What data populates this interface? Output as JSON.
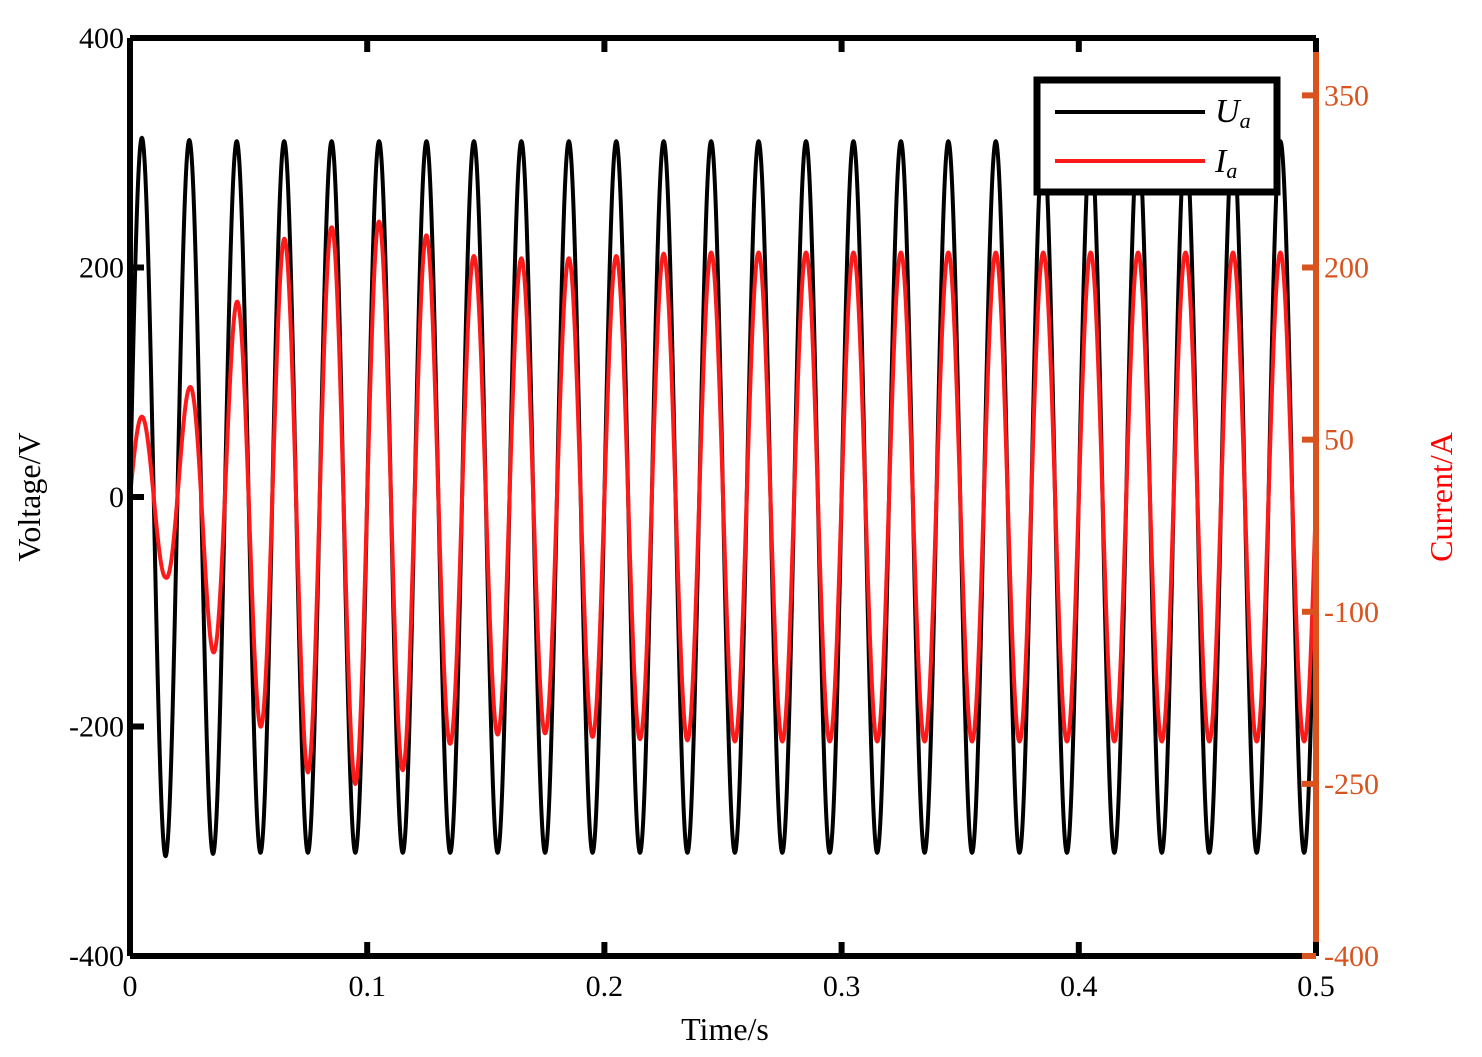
{
  "chart_data": {
    "type": "line",
    "title": "",
    "xlabel": "Time/s",
    "ylabel": "Voltage/V",
    "y2label": "Current/A",
    "xlim": [
      0,
      0.5
    ],
    "ylim": [
      -400,
      400
    ],
    "y2lim": [
      -400,
      400
    ],
    "xticks": [
      0,
      0.1,
      0.2,
      0.3,
      0.4,
      0.5
    ],
    "xtick_labels": [
      "0",
      "0.1",
      "0.2",
      "0.3",
      "0.4",
      "0.5"
    ],
    "yticks": [
      -400,
      -200,
      0,
      200,
      400
    ],
    "ytick_labels": [
      "-400",
      "-200",
      "0",
      "200",
      "400"
    ],
    "y2ticks": [
      -400,
      -250,
      -100,
      50,
      200,
      350
    ],
    "y2tick_labels": [
      "-400",
      "-250",
      "-100",
      "50",
      "200",
      "350"
    ],
    "grid": false,
    "legend_position": "top-right",
    "colors": {
      "voltage": "#000000",
      "current": "#ff1a1a",
      "right_axis": "#d9531e",
      "right_axis_title": "#ff0000"
    },
    "series": [
      {
        "name": "U",
        "subscript": "a",
        "axis": "left",
        "frequency_hz": 50,
        "amplitude": 311,
        "x": [
          0,
          0.005,
          0.015,
          0.025,
          0.035,
          0.045,
          0.055,
          0.1,
          0.2,
          0.3,
          0.4,
          0.495,
          0.5
        ],
        "y": [
          0,
          313,
          -313,
          311,
          -311,
          310,
          -310,
          310,
          310,
          310,
          310,
          310,
          0
        ]
      },
      {
        "name": "I",
        "subscript": "a",
        "axis": "right",
        "frequency_hz": 50,
        "x": [
          0,
          0.005,
          0.015,
          0.025,
          0.035,
          0.045,
          0.055,
          0.065,
          0.075,
          0.085,
          0.095,
          0.105,
          0.115,
          0.125,
          0.135,
          0.145,
          0.155,
          0.165,
          0.175,
          0.185,
          0.195,
          0.205,
          0.215,
          0.225,
          0.235,
          0.245,
          0.255,
          0.265,
          0.275,
          0.285,
          0.295,
          0.305,
          0.315,
          0.325,
          0.335,
          0.345,
          0.355,
          0.365,
          0.375,
          0.385,
          0.395,
          0.405,
          0.415,
          0.425,
          0.435,
          0.445,
          0.455,
          0.465,
          0.475,
          0.485,
          0.495,
          0.5
        ],
        "y": [
          0,
          70,
          -70,
          95,
          -135,
          170,
          -200,
          225,
          -240,
          235,
          -250,
          240,
          -238,
          228,
          -215,
          210,
          -207,
          208,
          -206,
          208,
          -209,
          210,
          -211,
          212,
          -212,
          213,
          -213,
          213,
          -213,
          213,
          -213,
          213,
          -213,
          213,
          -213,
          213,
          -213,
          213,
          -213,
          213,
          -213,
          213,
          -213,
          213,
          -213,
          213,
          -213,
          213,
          -213,
          213,
          -213,
          0
        ]
      }
    ]
  }
}
